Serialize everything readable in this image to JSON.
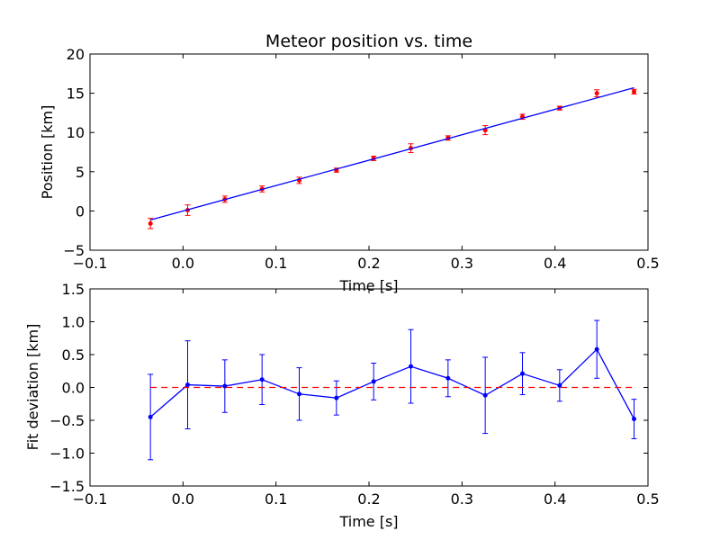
{
  "chart_data": [
    {
      "type": "scatter",
      "title": "Meteor position vs. time",
      "xlabel": "Time [s]",
      "ylabel": "Position [km]",
      "xlim": [
        -0.1,
        0.5
      ],
      "ylim": [
        -5,
        20
      ],
      "xticks": [
        "−0.1",
        "0.0",
        "0.1",
        "0.2",
        "0.3",
        "0.4",
        "0.5"
      ],
      "yticks": [
        "−5",
        "0",
        "5",
        "10",
        "15",
        "20"
      ],
      "grid": false,
      "colors": {
        "points": "#ff0000",
        "fit": "#0000ff",
        "errorbars": "#ff0000"
      },
      "series": [
        {
          "kind": "errorbar-points",
          "x": [
            -0.035,
            0.005,
            0.045,
            0.085,
            0.125,
            0.165,
            0.205,
            0.245,
            0.285,
            0.325,
            0.365,
            0.405,
            0.445,
            0.485
          ],
          "y": [
            -1.6,
            0.1,
            1.5,
            2.8,
            3.9,
            5.2,
            6.7,
            8.0,
            9.3,
            10.3,
            12.0,
            13.1,
            15.0,
            15.2
          ],
          "yerr": [
            0.65,
            0.67,
            0.4,
            0.38,
            0.4,
            0.26,
            0.28,
            0.56,
            0.28,
            0.58,
            0.32,
            0.24,
            0.44,
            0.3
          ]
        },
        {
          "kind": "fit-line",
          "x": [
            -0.035,
            0.485
          ],
          "y": [
            -1.14,
            15.7
          ]
        }
      ]
    },
    {
      "type": "line",
      "title": "",
      "xlabel": "Time [s]",
      "ylabel": "Fit deviation [km]",
      "xlim": [
        -0.1,
        0.5
      ],
      "ylim": [
        -1.5,
        1.5
      ],
      "xticks": [
        "−0.1",
        "0.0",
        "0.1",
        "0.2",
        "0.3",
        "0.4",
        "0.5"
      ],
      "yticks": [
        "−1.5",
        "−1.0",
        "−0.5",
        "0.0",
        "0.5",
        "1.0",
        "1.5"
      ],
      "grid": false,
      "colors": {
        "line": "#0000ff",
        "reference": "#ff0000"
      },
      "series": [
        {
          "kind": "errorbar-line",
          "x": [
            -0.035,
            0.005,
            0.045,
            0.085,
            0.125,
            0.165,
            0.205,
            0.245,
            0.285,
            0.325,
            0.365,
            0.405,
            0.445,
            0.485
          ],
          "y": [
            -0.45,
            0.04,
            0.02,
            0.12,
            -0.1,
            -0.16,
            0.09,
            0.32,
            0.14,
            -0.12,
            0.21,
            0.03,
            0.58,
            -0.48
          ],
          "yerr": [
            0.65,
            0.67,
            0.4,
            0.38,
            0.4,
            0.26,
            0.28,
            0.56,
            0.28,
            0.58,
            0.32,
            0.24,
            0.44,
            0.3
          ]
        },
        {
          "kind": "reference-line",
          "x": [
            -0.035,
            0.485
          ],
          "y": [
            0,
            0
          ]
        }
      ]
    }
  ]
}
